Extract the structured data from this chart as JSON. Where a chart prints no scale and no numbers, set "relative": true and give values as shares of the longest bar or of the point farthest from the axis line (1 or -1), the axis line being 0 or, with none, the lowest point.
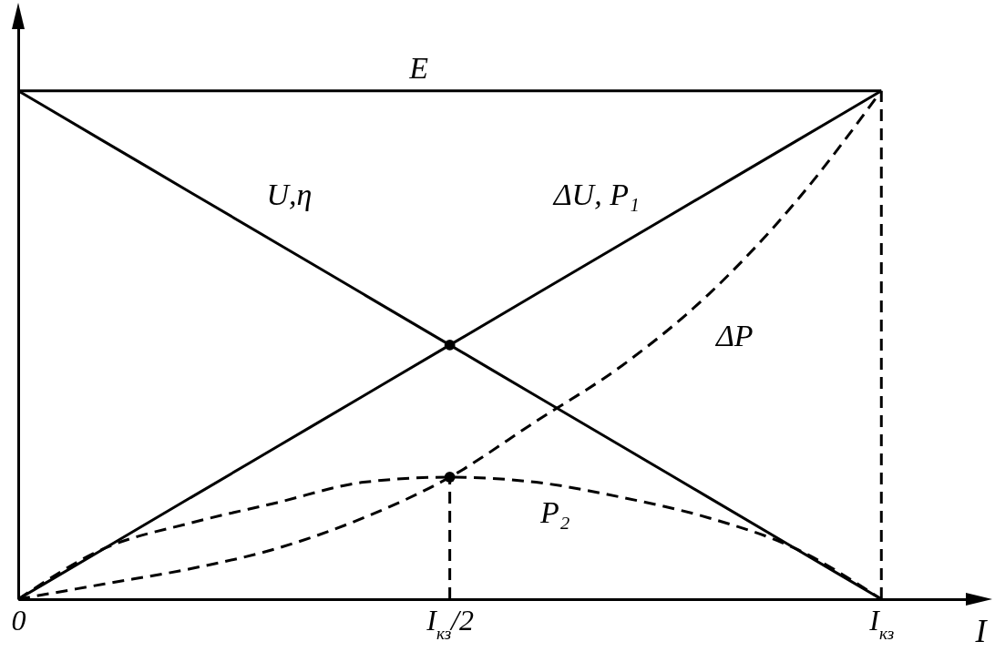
{
  "chart_data": {
    "type": "line",
    "relative": true,
    "xlabel": "I",
    "categories": [
      "0",
      null,
      null,
      null,
      null,
      "I$_{кз}$/2",
      null,
      null,
      null,
      null,
      "I$_{кз}$"
    ],
    "series": [
      {
        "name": "E",
        "color": "#000000",
        "line_style": "solid",
        "values": [
          1,
          1,
          1,
          1,
          1,
          1,
          1,
          1,
          1,
          1,
          1
        ]
      },
      {
        "name": "U,η",
        "color": "#000000",
        "line_style": "solid",
        "values": [
          1,
          0.9,
          0.8,
          0.7,
          0.6,
          0.5,
          0.4,
          0.3,
          0.2,
          0.1,
          0
        ]
      },
      {
        "name": "ΔU, P₁",
        "color": "#000000",
        "line_style": "solid",
        "values": [
          0,
          0.1,
          0.2,
          0.3,
          0.4,
          0.5,
          0.6,
          0.7,
          0.8,
          0.9,
          1
        ]
      },
      {
        "name": "ΔP",
        "color": "#000000",
        "line_style": "dashed",
        "values": [
          0,
          0.03,
          0.06,
          0.1,
          0.16,
          0.24,
          0.35,
          0.46,
          0.6,
          0.78,
          1
        ]
      },
      {
        "name": "P₂",
        "color": "#000000",
        "line_style": "dashed",
        "values": [
          0,
          0.1,
          0.15,
          0.19,
          0.23,
          0.24,
          0.23,
          0.2,
          0.16,
          0.1,
          0
        ]
      },
      {
        "type": "line",
        "color": "#000000",
        "line_style": "dashed",
        "x": [
          "I$_{кз}$/2",
          "I$_{кз}$/2"
        ],
        "values": [
          0,
          0.24
        ]
      },
      {
        "type": "line",
        "color": "#000000",
        "line_style": "dashed",
        "x": [
          "I$_{кз}$",
          "I$_{кз}$"
        ],
        "values": [
          0,
          1
        ]
      },
      {
        "type": "scatter",
        "color": "#000000",
        "marker": "circle",
        "x": [
          "I$_{кз}$/2",
          "I$_{кз}$/2"
        ],
        "values": [
          0.5,
          0.24
        ]
      }
    ]
  }
}
